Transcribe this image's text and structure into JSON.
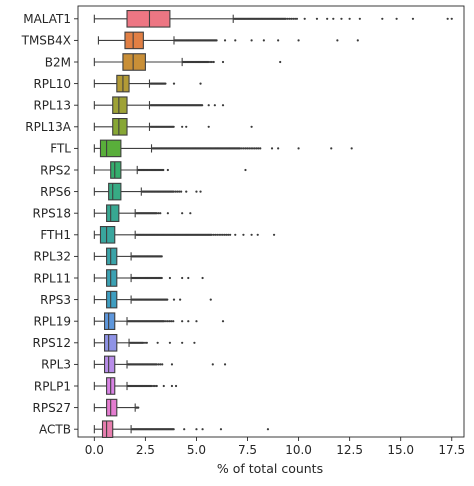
{
  "chart_data": {
    "type": "box",
    "orientation": "horizontal",
    "xlabel": "% of total counts",
    "ylabel": "",
    "title": "",
    "xlim": [
      -0.8,
      18.1
    ],
    "xticks": [
      0.0,
      2.5,
      5.0,
      7.5,
      10.0,
      12.5,
      15.0,
      17.5
    ],
    "xtick_labels": [
      "0.0",
      "2.5",
      "5.0",
      "7.5",
      "10.0",
      "12.5",
      "15.0",
      "17.5"
    ],
    "grid": false,
    "legend": "none",
    "categories": [
      "MALAT1",
      "TMSB4X",
      "B2M",
      "RPL10",
      "RPL13",
      "RPL13A",
      "FTL",
      "RPS2",
      "RPS6",
      "RPS18",
      "FTH1",
      "RPL32",
      "RPL11",
      "RPS3",
      "RPL19",
      "RPS12",
      "RPL3",
      "RPLP1",
      "RPS27",
      "ACTB"
    ],
    "boxes": [
      {
        "gene": "MALAT1",
        "color": "#ed7683",
        "whisker_low": 0.0,
        "q1": 1.6,
        "median": 2.7,
        "q3": 3.7,
        "whisker_high": 6.8,
        "outliers_dense_to": 10.0,
        "outliers_sparse": [
          10.3,
          10.9,
          11.4,
          11.7,
          12.1,
          12.5,
          13.0,
          14.1,
          14.8,
          15.6,
          17.3,
          17.5
        ]
      },
      {
        "gene": "TMSB4X",
        "color": "#e17f44",
        "whisker_low": 0.2,
        "q1": 1.5,
        "median": 1.9,
        "q3": 2.4,
        "whisker_high": 3.9,
        "outliers_dense_to": 6.0,
        "outliers_sparse": [
          6.4,
          6.9,
          7.7,
          8.3,
          9.0,
          10.0,
          11.9,
          12.9
        ]
      },
      {
        "gene": "B2M",
        "color": "#c98f37",
        "whisker_low": 0.0,
        "q1": 1.4,
        "median": 1.9,
        "q3": 2.5,
        "whisker_high": 4.3,
        "outliers_dense_to": 5.9,
        "outliers_sparse": [
          6.3,
          9.1
        ]
      },
      {
        "gene": "RPL10",
        "color": "#b29a36",
        "whisker_low": 0.0,
        "q1": 1.1,
        "median": 1.4,
        "q3": 1.7,
        "whisker_high": 2.7,
        "outliers_dense_to": 3.5,
        "outliers_sparse": [
          3.9,
          5.2
        ]
      },
      {
        "gene": "RPL13",
        "color": "#9ea236",
        "whisker_low": 0.0,
        "q1": 0.9,
        "median": 1.2,
        "q3": 1.6,
        "whisker_high": 2.7,
        "outliers_dense_to": 5.3,
        "outliers_sparse": [
          5.6,
          5.9,
          6.3
        ]
      },
      {
        "gene": "RPL13A",
        "color": "#87a735",
        "whisker_low": 0.0,
        "q1": 0.9,
        "median": 1.2,
        "q3": 1.6,
        "whisker_high": 2.7,
        "outliers_dense_to": 3.9,
        "outliers_sparse": [
          4.3,
          4.5,
          5.6,
          7.7
        ]
      },
      {
        "gene": "FTL",
        "color": "#59ae3a",
        "whisker_low": 0.0,
        "q1": 0.3,
        "median": 0.6,
        "q3": 1.3,
        "whisker_high": 2.8,
        "outliers_dense_to": 8.2,
        "outliers_sparse": [
          8.7,
          9.0,
          10.0,
          11.6,
          12.6
        ]
      },
      {
        "gene": "RPS2",
        "color": "#35ae6d",
        "whisker_low": 0.0,
        "q1": 0.8,
        "median": 1.0,
        "q3": 1.3,
        "whisker_high": 2.1,
        "outliers_dense_to": 3.4,
        "outliers_sparse": [
          3.6,
          7.4
        ]
      },
      {
        "gene": "RPS6",
        "color": "#37ab84",
        "whisker_low": 0.0,
        "q1": 0.7,
        "median": 0.9,
        "q3": 1.3,
        "whisker_high": 2.3,
        "outliers_dense_to": 4.3,
        "outliers_sparse": [
          4.5,
          5.0,
          5.2
        ]
      },
      {
        "gene": "RPS18",
        "color": "#38a892",
        "whisker_low": 0.0,
        "q1": 0.6,
        "median": 0.8,
        "q3": 1.2,
        "whisker_high": 2.0,
        "outliers_dense_to": 3.3,
        "outliers_sparse": [
          3.6,
          4.3,
          4.7
        ]
      },
      {
        "gene": "FTH1",
        "color": "#39a69e",
        "whisker_low": 0.0,
        "q1": 0.3,
        "median": 0.6,
        "q3": 1.0,
        "whisker_high": 2.0,
        "outliers_dense_to": 6.7,
        "outliers_sparse": [
          6.9,
          7.3,
          7.7,
          8.0,
          8.8
        ]
      },
      {
        "gene": "RPL32",
        "color": "#3aa3a8",
        "whisker_low": 0.0,
        "q1": 0.6,
        "median": 0.8,
        "q3": 1.1,
        "whisker_high": 1.8,
        "outliers_dense_to": 3.3,
        "outliers_sparse": []
      },
      {
        "gene": "RPL11",
        "color": "#3ba1b3",
        "whisker_low": 0.0,
        "q1": 0.6,
        "median": 0.8,
        "q3": 1.1,
        "whisker_high": 1.8,
        "outliers_dense_to": 3.3,
        "outliers_sparse": [
          3.7,
          4.3,
          4.6,
          5.3
        ]
      },
      {
        "gene": "RPS3",
        "color": "#3e9ec1",
        "whisker_low": 0.0,
        "q1": 0.6,
        "median": 0.8,
        "q3": 1.1,
        "whisker_high": 1.8,
        "outliers_dense_to": 3.6,
        "outliers_sparse": [
          3.9,
          4.2,
          5.7
        ]
      },
      {
        "gene": "RPL19",
        "color": "#5e97dc",
        "whisker_low": 0.0,
        "q1": 0.5,
        "median": 0.7,
        "q3": 1.0,
        "whisker_high": 1.6,
        "outliers_dense_to": 3.9,
        "outliers_sparse": [
          4.3,
          4.6,
          5.0,
          6.3
        ]
      },
      {
        "gene": "RPS12",
        "color": "#8f93e6",
        "whisker_low": 0.0,
        "q1": 0.5,
        "median": 0.7,
        "q3": 1.1,
        "whisker_high": 1.7,
        "outliers_dense_to": 2.6,
        "outliers_sparse": [
          3.1,
          3.7,
          4.3,
          4.9
        ]
      },
      {
        "gene": "RPL3",
        "color": "#b88de9",
        "whisker_low": 0.0,
        "q1": 0.5,
        "median": 0.7,
        "q3": 1.0,
        "whisker_high": 1.6,
        "outliers_dense_to": 3.4,
        "outliers_sparse": [
          3.8,
          5.8,
          6.4
        ]
      },
      {
        "gene": "RPLP1",
        "color": "#d882e4",
        "whisker_low": 0.0,
        "q1": 0.6,
        "median": 0.8,
        "q3": 1.0,
        "whisker_high": 1.6,
        "outliers_dense_to": 3.1,
        "outliers_sparse": [
          3.4,
          3.8,
          4.0
        ]
      },
      {
        "gene": "RPS27",
        "color": "#e47cd0",
        "whisker_low": 0.0,
        "q1": 0.6,
        "median": 0.8,
        "q3": 1.1,
        "whisker_high": 2.0,
        "outliers_dense_to": 2.2,
        "outliers_sparse": []
      },
      {
        "gene": "ACTB",
        "color": "#e77eae",
        "whisker_low": 0.0,
        "q1": 0.4,
        "median": 0.6,
        "q3": 0.9,
        "whisker_high": 1.8,
        "outliers_dense_to": 3.9,
        "outliers_sparse": [
          4.4,
          5.0,
          5.3,
          6.2,
          8.5
        ]
      }
    ]
  }
}
